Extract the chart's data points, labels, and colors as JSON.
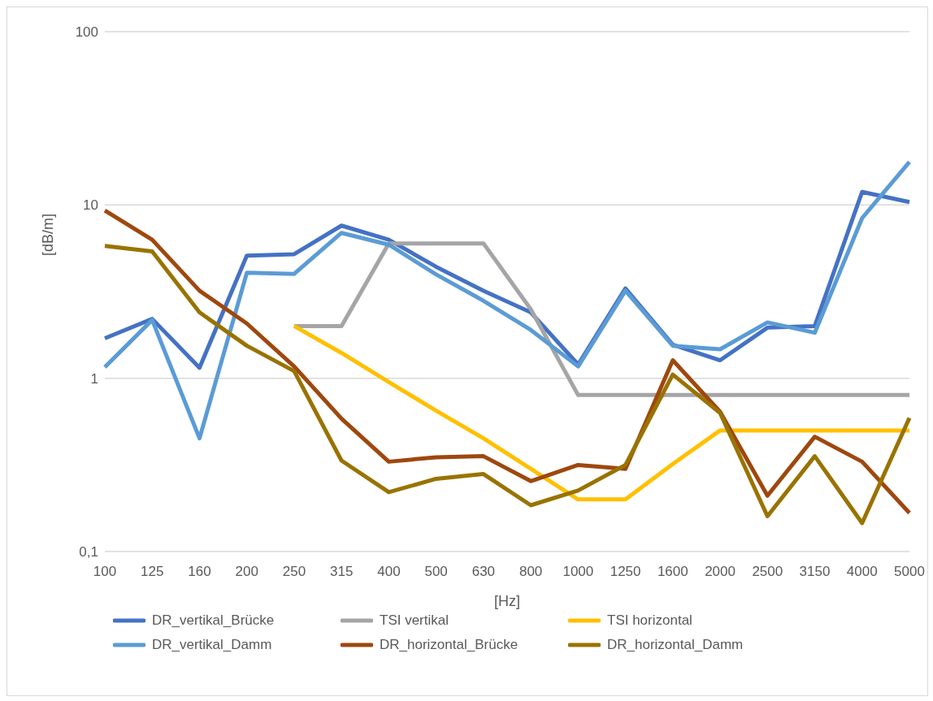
{
  "chart_data": {
    "type": "line",
    "xlabel": "[Hz]",
    "ylabel": "[dB/m]",
    "log": "y",
    "grid": "y",
    "legend": "bottom",
    "line_style": "solid",
    "marker": "none",
    "categories": [
      "100",
      "125",
      "160",
      "200",
      "250",
      "315",
      "400",
      "500",
      "630",
      "800",
      "1000",
      "1250",
      "1600",
      "2000",
      "2500",
      "3150",
      "4000",
      "5000"
    ],
    "ylim": [
      0.1,
      100
    ],
    "yticks": [
      {
        "value": 0.1,
        "label": "0,1"
      },
      1,
      10,
      100
    ],
    "series": [
      {
        "name": "DR_vertikal_Brücke",
        "color": "#4472c4",
        "values": [
          1.7,
          2.2,
          1.15,
          5.1,
          5.2,
          7.6,
          6.3,
          4.4,
          3.2,
          2.4,
          1.2,
          3.3,
          1.56,
          1.27,
          1.96,
          2.0,
          11.9,
          10.4
        ]
      },
      {
        "name": "TSI vertikal",
        "color": "#a5a5a5",
        "values": [
          null,
          null,
          null,
          null,
          2.0,
          2.0,
          6.0,
          6.0,
          6.0,
          2.5,
          0.8,
          0.8,
          0.8,
          0.8,
          0.8,
          0.8,
          0.8,
          0.8
        ]
      },
      {
        "name": "TSI horizontal",
        "color": "#ffc000",
        "values": [
          null,
          null,
          null,
          null,
          2.0,
          1.4,
          0.95,
          0.65,
          0.45,
          0.3,
          0.2,
          0.2,
          0.32,
          0.5,
          0.5,
          0.5,
          0.5,
          0.5
        ]
      },
      {
        "name": "DR_vertikal_Damm",
        "color": "#5b9bd5",
        "values": [
          1.16,
          2.17,
          0.45,
          4.06,
          4.0,
          6.9,
          5.9,
          3.97,
          2.8,
          1.9,
          1.17,
          3.2,
          1.54,
          1.47,
          2.1,
          1.83,
          8.4,
          17.7
        ]
      },
      {
        "name": "DR_horizontal_Brücke",
        "color": "#9e480e",
        "values": [
          9.3,
          6.3,
          3.2,
          2.07,
          1.17,
          0.585,
          0.33,
          0.35,
          0.355,
          0.255,
          0.316,
          0.3,
          1.27,
          0.64,
          0.21,
          0.46,
          0.33,
          0.167
        ]
      },
      {
        "name": "DR_horizontal_Damm",
        "color": "#997300",
        "values": [
          5.8,
          5.4,
          2.4,
          1.54,
          1.1,
          0.335,
          0.22,
          0.263,
          0.28,
          0.185,
          0.225,
          0.316,
          1.05,
          0.63,
          0.16,
          0.355,
          0.146,
          0.59
        ]
      }
    ]
  }
}
